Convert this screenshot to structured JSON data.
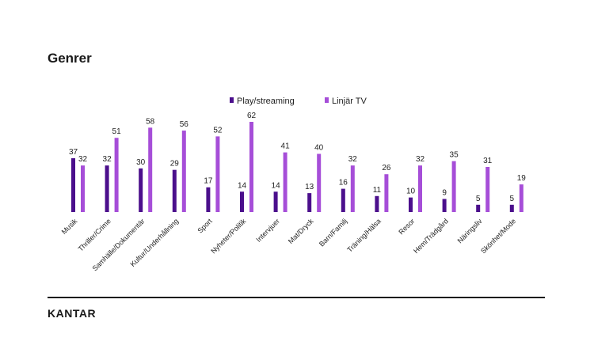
{
  "brand": "KANTAR",
  "chart_data": {
    "type": "bar",
    "title": "Genrer",
    "categories": [
      "Musik",
      "Thriller/Crime",
      "Samhälle/Dokumentär",
      "Kultur/Underhållning",
      "Sport",
      "Nyheter/Politik",
      "Intervjuer",
      "Mat/Dryck",
      "Barn/Familj",
      "Träning/Hälsa",
      "Resor",
      "Hem/Trädgård",
      "Näringsliv",
      "Skönhet/Mode"
    ],
    "series": [
      {
        "name": "Play/streaming",
        "color": "#4b0f8c",
        "values": [
          37,
          32,
          30,
          29,
          17,
          14,
          14,
          13,
          16,
          11,
          10,
          9,
          5,
          5
        ]
      },
      {
        "name": "Linjär TV",
        "color": "#a64ed8",
        "values": [
          32,
          51,
          58,
          56,
          52,
          62,
          41,
          40,
          32,
          26,
          32,
          35,
          31,
          19
        ]
      }
    ],
    "ylim": [
      0,
      62
    ],
    "legend": "top-center"
  }
}
